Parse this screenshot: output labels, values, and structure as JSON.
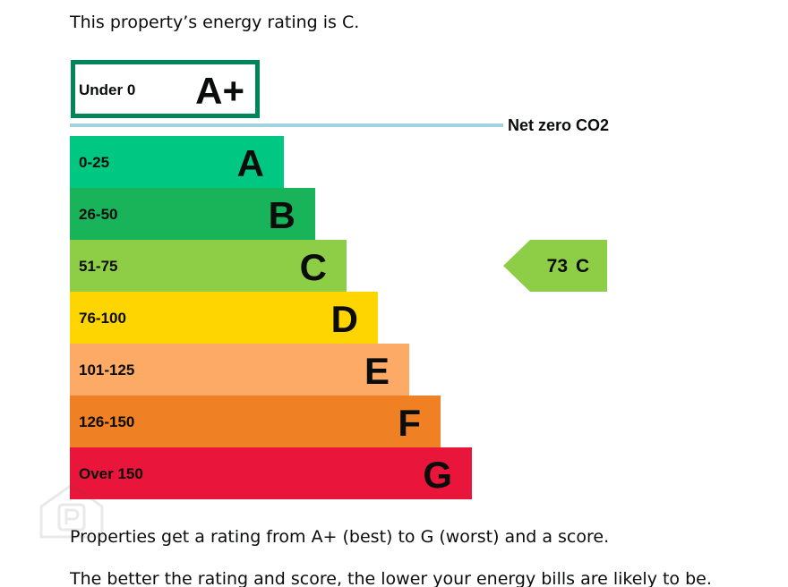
{
  "intro_text": "This property’s energy rating is C.",
  "outro_text": "Properties get a rating from A+ (best) to G (worst) and a score.",
  "cut_text": "The better the rating and score, the lower your energy bills are likely to be.",
  "chart_data": {
    "type": "bar",
    "title": "",
    "net_zero_label": "Net zero CO2",
    "bands": [
      {
        "letter": "A+",
        "range": "Under 0",
        "color": "#00855a",
        "outlined": true
      },
      {
        "letter": "A",
        "range": "0-25",
        "color": "#00c781"
      },
      {
        "letter": "B",
        "range": "26-50",
        "color": "#19b459"
      },
      {
        "letter": "C",
        "range": "51-75",
        "color": "#8dce46"
      },
      {
        "letter": "D",
        "range": "76-100",
        "color": "#ffd500"
      },
      {
        "letter": "E",
        "range": "101-125",
        "color": "#fcaa65"
      },
      {
        "letter": "F",
        "range": "126-150",
        "color": "#ef8023"
      },
      {
        "letter": "G",
        "range": "Over 150",
        "color": "#e9153b"
      }
    ],
    "current": {
      "score": 73,
      "letter": "C",
      "band_index": 3,
      "color": "#8dce46"
    },
    "net_zero_line_color": "#9fd3e0"
  }
}
